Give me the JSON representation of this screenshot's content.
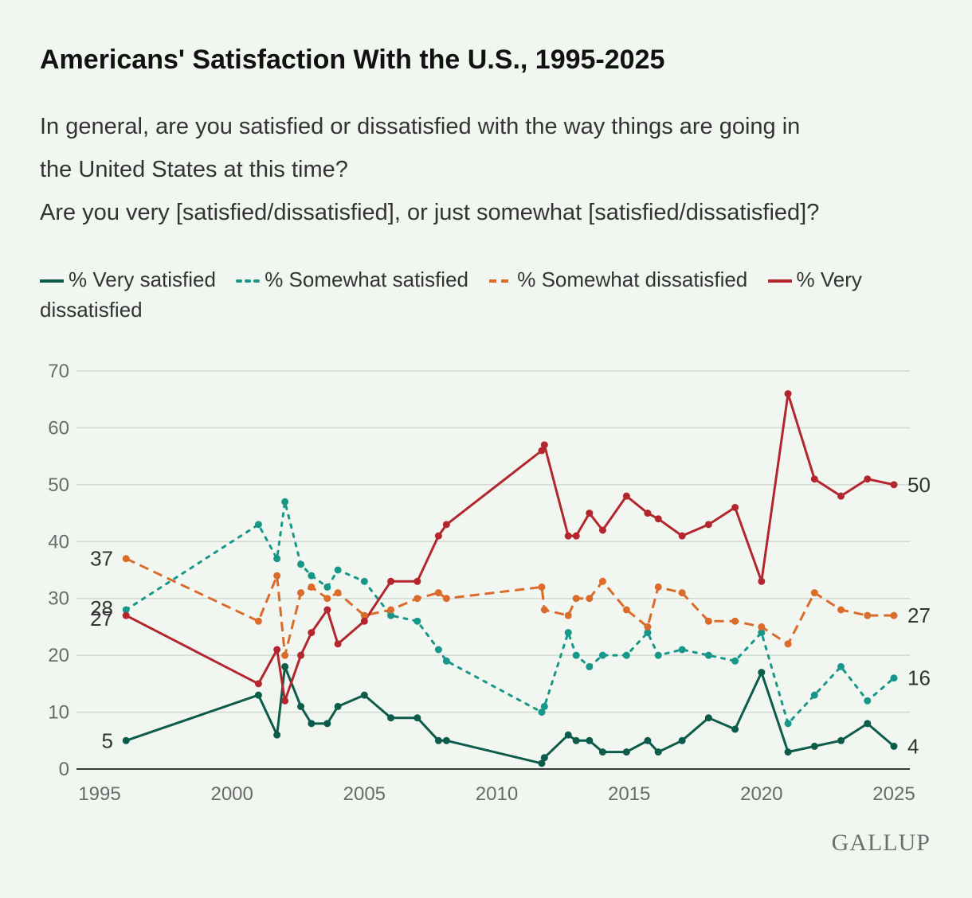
{
  "title": "Americans' Satisfaction With the U.S., 1995-2025",
  "subtitle_lines": [
    "In general, are you satisfied or dissatisfied with the way things are going in",
    "the United States at this time?",
    "Are you very [satisfied/dissatisfied], or just somewhat [satisfied/dissatisfied]?"
  ],
  "brand": "GALLUP",
  "colors": {
    "very_satisfied": "#0d5c4b",
    "somewhat_satisfied": "#17978a",
    "somewhat_dissatisfied": "#db6b2a",
    "very_dissatisfied": "#b3262e",
    "grid": "#d2d9d2",
    "background": "#f1f7f0"
  },
  "chart_data": {
    "type": "line",
    "xlabel": "",
    "ylabel": "",
    "ylim": [
      0,
      70
    ],
    "xlim": [
      1995,
      2025
    ],
    "y_ticks": [
      0,
      10,
      20,
      30,
      40,
      50,
      60,
      70
    ],
    "x_ticks": [
      1995,
      2000,
      2005,
      2010,
      2015,
      2020,
      2025
    ],
    "grid": true,
    "legend_position": "top-left",
    "series": [
      {
        "name": "% Very satisfied",
        "style": "solid",
        "color": "#0d5c4b",
        "start_label": "5",
        "end_label": "4",
        "points": [
          [
            1996,
            5
          ],
          [
            2001,
            13
          ],
          [
            2001.7,
            6
          ],
          [
            2002,
            18
          ],
          [
            2002.6,
            11
          ],
          [
            2003,
            8
          ],
          [
            2003.6,
            8
          ],
          [
            2004,
            11
          ],
          [
            2005,
            13
          ],
          [
            2006,
            9
          ],
          [
            2007,
            9
          ],
          [
            2007.8,
            5
          ],
          [
            2008.1,
            5
          ],
          [
            2011.7,
            1
          ],
          [
            2011.8,
            2
          ],
          [
            2012.7,
            6
          ],
          [
            2013,
            5
          ],
          [
            2013.5,
            5
          ],
          [
            2014,
            3
          ],
          [
            2014.9,
            3
          ],
          [
            2015.7,
            5
          ],
          [
            2016.1,
            3
          ],
          [
            2017,
            5
          ],
          [
            2018,
            9
          ],
          [
            2019,
            7
          ],
          [
            2020,
            17
          ],
          [
            2021,
            3
          ],
          [
            2022,
            4
          ],
          [
            2023,
            5
          ],
          [
            2024,
            8
          ],
          [
            2025,
            4
          ]
        ]
      },
      {
        "name": "% Somewhat satisfied",
        "style": "dotted",
        "color": "#17978a",
        "start_label": "28",
        "end_label": "16",
        "points": [
          [
            1996,
            28
          ],
          [
            2001,
            43
          ],
          [
            2001.7,
            37
          ],
          [
            2002,
            47
          ],
          [
            2002.6,
            36
          ],
          [
            2003,
            34
          ],
          [
            2003.6,
            32
          ],
          [
            2004,
            35
          ],
          [
            2005,
            33
          ],
          [
            2006,
            27
          ],
          [
            2007,
            26
          ],
          [
            2007.8,
            21
          ],
          [
            2008.1,
            19
          ],
          [
            2011.7,
            10
          ],
          [
            2011.8,
            11
          ],
          [
            2012.7,
            24
          ],
          [
            2013,
            20
          ],
          [
            2013.5,
            18
          ],
          [
            2014,
            20
          ],
          [
            2014.9,
            20
          ],
          [
            2015.7,
            24
          ],
          [
            2016.1,
            20
          ],
          [
            2017,
            21
          ],
          [
            2018,
            20
          ],
          [
            2019,
            19
          ],
          [
            2020,
            24
          ],
          [
            2021,
            8
          ],
          [
            2022,
            13
          ],
          [
            2023,
            18
          ],
          [
            2024,
            12
          ],
          [
            2025,
            16
          ]
        ]
      },
      {
        "name": "% Somewhat dissatisfied",
        "style": "dashed",
        "color": "#db6b2a",
        "start_label": "37",
        "end_label": "27",
        "points": [
          [
            1996,
            37
          ],
          [
            2001,
            26
          ],
          [
            2001.7,
            34
          ],
          [
            2002,
            20
          ],
          [
            2002.6,
            31
          ],
          [
            2003,
            32
          ],
          [
            2003.6,
            30
          ],
          [
            2004,
            31
          ],
          [
            2005,
            27
          ],
          [
            2006,
            28
          ],
          [
            2007,
            30
          ],
          [
            2007.8,
            31
          ],
          [
            2008.1,
            30
          ],
          [
            2011.7,
            32
          ],
          [
            2011.8,
            28
          ],
          [
            2012.7,
            27
          ],
          [
            2013,
            30
          ],
          [
            2013.5,
            30
          ],
          [
            2014,
            33
          ],
          [
            2014.9,
            28
          ],
          [
            2015.7,
            25
          ],
          [
            2016.1,
            32
          ],
          [
            2017,
            31
          ],
          [
            2018,
            26
          ],
          [
            2019,
            26
          ],
          [
            2020,
            25
          ],
          [
            2021,
            22
          ],
          [
            2022,
            31
          ],
          [
            2023,
            28
          ],
          [
            2024,
            27
          ],
          [
            2025,
            27
          ]
        ]
      },
      {
        "name": "% Very dissatisfied",
        "style": "solid",
        "color": "#b3262e",
        "start_label": "27",
        "end_label": "50",
        "points": [
          [
            1996,
            27
          ],
          [
            2001,
            15
          ],
          [
            2001.7,
            21
          ],
          [
            2002,
            12
          ],
          [
            2002.6,
            20
          ],
          [
            2003,
            24
          ],
          [
            2003.6,
            28
          ],
          [
            2004,
            22
          ],
          [
            2005,
            26
          ],
          [
            2006,
            33
          ],
          [
            2007,
            33
          ],
          [
            2007.8,
            41
          ],
          [
            2008.1,
            43
          ],
          [
            2011.7,
            56
          ],
          [
            2011.8,
            57
          ],
          [
            2012.7,
            41
          ],
          [
            2013,
            41
          ],
          [
            2013.5,
            45
          ],
          [
            2014,
            42
          ],
          [
            2014.9,
            48
          ],
          [
            2015.7,
            45
          ],
          [
            2016.1,
            44
          ],
          [
            2017,
            41
          ],
          [
            2018,
            43
          ],
          [
            2019,
            46
          ],
          [
            2020,
            33
          ],
          [
            2021,
            66
          ],
          [
            2022,
            51
          ],
          [
            2023,
            48
          ],
          [
            2024,
            51
          ],
          [
            2025,
            50
          ]
        ]
      }
    ]
  }
}
